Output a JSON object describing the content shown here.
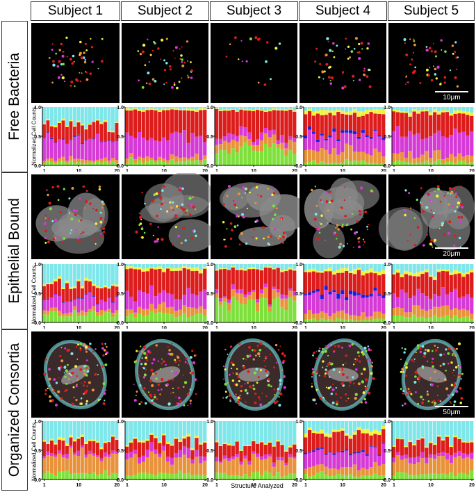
{
  "figure": {
    "subjects": [
      "Subject 1",
      "Subject 2",
      "Subject 3",
      "Subject 4",
      "Subject 5"
    ],
    "rows": [
      {
        "label": "Free Bacteria",
        "scale_bar": "10μm"
      },
      {
        "label": "Epithelial Bound",
        "scale_bar": "20μm"
      },
      {
        "label": "Organized Consortia",
        "scale_bar": "50μm"
      }
    ],
    "y_axis_label": "Normalized Cell Counts",
    "x_axis_label": "Structure Analyzed",
    "y_ticks": [
      "0.0",
      "0.5",
      "1.0"
    ],
    "x_ticks": [
      "1",
      "10",
      "20"
    ]
  },
  "colors": {
    "green": "#7ee03a",
    "orange": "#e8923a",
    "magenta": "#d63ad6",
    "blue": "#1e1ed8",
    "red": "#dd1c1c",
    "yellow": "#f2f23a",
    "cyan": "#7fe6ea"
  },
  "chart_data": [
    {
      "type": "bar",
      "row": "Free Bacteria",
      "subject": "Subject 1",
      "stacked": true,
      "x": [
        1,
        2,
        3,
        4,
        5,
        6,
        7,
        8,
        9,
        10,
        11,
        12,
        13,
        14,
        15,
        16,
        17,
        18,
        19,
        20
      ],
      "ylim": [
        0,
        1
      ],
      "series_order": [
        "green",
        "orange",
        "magenta",
        "blue",
        "red",
        "yellow",
        "cyan"
      ],
      "profile": {
        "green": 0.05,
        "orange": 0.05,
        "magenta": 0.35,
        "blue": 0.01,
        "red": 0.25,
        "yellow": 0.02,
        "cyan": 0.27
      }
    },
    {
      "type": "bar",
      "row": "Free Bacteria",
      "subject": "Subject 2",
      "stacked": true,
      "x": [
        1,
        2,
        3,
        4,
        5,
        6,
        7,
        8,
        9,
        10,
        11,
        12,
        13,
        14,
        15,
        16,
        17,
        18,
        19,
        20
      ],
      "ylim": [
        0,
        1
      ],
      "series_order": [
        "green",
        "orange",
        "magenta",
        "blue",
        "red",
        "yellow",
        "cyan"
      ],
      "profile": {
        "green": 0.07,
        "orange": 0.06,
        "magenta": 0.35,
        "blue": 0.0,
        "red": 0.46,
        "yellow": 0.03,
        "cyan": 0.03
      }
    },
    {
      "type": "bar",
      "row": "Free Bacteria",
      "subject": "Subject 3",
      "stacked": true,
      "x": [
        1,
        2,
        3,
        4,
        5,
        6,
        7,
        8,
        9,
        10,
        11,
        12,
        13,
        14,
        15,
        16,
        17,
        18,
        19,
        20
      ],
      "ylim": [
        0,
        1
      ],
      "series_order": [
        "green",
        "orange",
        "magenta",
        "blue",
        "red",
        "yellow",
        "cyan"
      ],
      "profile": {
        "green": 0.26,
        "orange": 0.13,
        "magenta": 0.1,
        "blue": 0.0,
        "red": 0.45,
        "yellow": 0.02,
        "cyan": 0.04
      }
    },
    {
      "type": "bar",
      "row": "Free Bacteria",
      "subject": "Subject 4",
      "stacked": true,
      "x": [
        1,
        2,
        3,
        4,
        5,
        6,
        7,
        8,
        9,
        10,
        11,
        12,
        13,
        14,
        15,
        16,
        17,
        18,
        19,
        20
      ],
      "ylim": [
        0,
        1
      ],
      "series_order": [
        "green",
        "orange",
        "magenta",
        "blue",
        "red",
        "yellow",
        "cyan"
      ],
      "profile": {
        "green": 0.06,
        "orange": 0.18,
        "magenta": 0.24,
        "blue": 0.04,
        "red": 0.36,
        "yellow": 0.07,
        "cyan": 0.05
      }
    },
    {
      "type": "bar",
      "row": "Free Bacteria",
      "subject": "Subject 5",
      "stacked": true,
      "x": [
        1,
        2,
        3,
        4,
        5,
        6,
        7,
        8,
        9,
        10,
        11,
        12,
        13,
        14,
        15,
        16,
        17,
        18,
        19,
        20
      ],
      "ylim": [
        0,
        1
      ],
      "series_order": [
        "green",
        "orange",
        "magenta",
        "blue",
        "red",
        "yellow",
        "cyan"
      ],
      "profile": {
        "green": 0.06,
        "orange": 0.12,
        "magenta": 0.35,
        "blue": 0.0,
        "red": 0.37,
        "yellow": 0.04,
        "cyan": 0.06
      }
    },
    {
      "type": "bar",
      "row": "Epithelial Bound",
      "subject": "Subject 1",
      "stacked": true,
      "x": [
        1,
        2,
        3,
        4,
        5,
        6,
        7,
        8,
        9,
        10,
        11,
        12,
        13,
        14,
        15,
        16,
        17,
        18,
        19,
        20
      ],
      "ylim": [
        0,
        1
      ],
      "series_order": [
        "green",
        "orange",
        "magenta",
        "blue",
        "red",
        "yellow",
        "cyan"
      ],
      "profile": {
        "green": 0.15,
        "orange": 0.07,
        "magenta": 0.2,
        "blue": 0.01,
        "red": 0.22,
        "yellow": 0.03,
        "cyan": 0.32
      }
    },
    {
      "type": "bar",
      "row": "Epithelial Bound",
      "subject": "Subject 2",
      "stacked": true,
      "x": [
        1,
        2,
        3,
        4,
        5,
        6,
        7,
        8,
        9,
        10,
        11,
        12,
        13,
        14,
        15,
        16,
        17,
        18,
        19,
        20
      ],
      "ylim": [
        0,
        1
      ],
      "series_order": [
        "green",
        "orange",
        "magenta",
        "blue",
        "red",
        "yellow",
        "cyan"
      ],
      "profile": {
        "green": 0.13,
        "orange": 0.12,
        "magenta": 0.25,
        "blue": 0.0,
        "red": 0.4,
        "yellow": 0.04,
        "cyan": 0.06
      }
    },
    {
      "type": "bar",
      "row": "Epithelial Bound",
      "subject": "Subject 3",
      "stacked": true,
      "x": [
        1,
        2,
        3,
        4,
        5,
        6,
        7,
        8,
        9,
        10,
        11,
        12,
        13,
        14,
        15,
        16,
        17,
        18,
        19,
        20
      ],
      "ylim": [
        0,
        1
      ],
      "series_order": [
        "green",
        "orange",
        "magenta",
        "blue",
        "red",
        "yellow",
        "cyan"
      ],
      "profile": {
        "green": 0.3,
        "orange": 0.12,
        "magenta": 0.05,
        "blue": 0.0,
        "red": 0.45,
        "yellow": 0.02,
        "cyan": 0.06
      }
    },
    {
      "type": "bar",
      "row": "Epithelial Bound",
      "subject": "Subject 4",
      "stacked": true,
      "x": [
        1,
        2,
        3,
        4,
        5,
        6,
        7,
        8,
        9,
        10,
        11,
        12,
        13,
        14,
        15,
        16,
        17,
        18,
        19,
        20
      ],
      "ylim": [
        0,
        1
      ],
      "series_order": [
        "green",
        "orange",
        "magenta",
        "blue",
        "red",
        "yellow",
        "cyan"
      ],
      "profile": {
        "green": 0.05,
        "orange": 0.1,
        "magenta": 0.3,
        "blue": 0.05,
        "red": 0.35,
        "yellow": 0.05,
        "cyan": 0.1
      }
    },
    {
      "type": "bar",
      "row": "Epithelial Bound",
      "subject": "Subject 5",
      "stacked": true,
      "x": [
        1,
        2,
        3,
        4,
        5,
        6,
        7,
        8,
        9,
        10,
        11,
        12,
        13,
        14,
        15,
        16,
        17,
        18,
        19,
        20
      ],
      "ylim": [
        0,
        1
      ],
      "series_order": [
        "green",
        "orange",
        "magenta",
        "blue",
        "red",
        "yellow",
        "cyan"
      ],
      "profile": {
        "green": 0.1,
        "orange": 0.15,
        "magenta": 0.25,
        "blue": 0.0,
        "red": 0.3,
        "yellow": 0.05,
        "cyan": 0.15
      }
    },
    {
      "type": "bar",
      "row": "Organized Consortia",
      "subject": "Subject 1",
      "stacked": true,
      "x": [
        1,
        2,
        3,
        4,
        5,
        6,
        7,
        8,
        9,
        10,
        11,
        12,
        13,
        14,
        15,
        16,
        17,
        18,
        19,
        20
      ],
      "ylim": [
        0,
        1
      ],
      "series_order": [
        "green",
        "orange",
        "magenta",
        "blue",
        "red",
        "yellow",
        "cyan"
      ],
      "profile": {
        "green": 0.1,
        "orange": 0.3,
        "magenta": 0.05,
        "blue": 0.0,
        "red": 0.2,
        "yellow": 0.03,
        "cyan": 0.32
      }
    },
    {
      "type": "bar",
      "row": "Organized Consortia",
      "subject": "Subject 2",
      "stacked": true,
      "x": [
        1,
        2,
        3,
        4,
        5,
        6,
        7,
        8,
        9,
        10,
        11,
        12,
        13,
        14,
        15,
        16,
        17,
        18,
        19,
        20
      ],
      "ylim": [
        0,
        1
      ],
      "series_order": [
        "green",
        "orange",
        "magenta",
        "blue",
        "red",
        "yellow",
        "cyan"
      ],
      "profile": {
        "green": 0.1,
        "orange": 0.25,
        "magenta": 0.1,
        "blue": 0.0,
        "red": 0.2,
        "yellow": 0.03,
        "cyan": 0.32
      }
    },
    {
      "type": "bar",
      "row": "Organized Consortia",
      "subject": "Subject 3",
      "stacked": true,
      "x": [
        1,
        2,
        3,
        4,
        5,
        6,
        7,
        8,
        9,
        10,
        11,
        12,
        13,
        14,
        15,
        16,
        17,
        18,
        19,
        20
      ],
      "ylim": [
        0,
        1
      ],
      "series_order": [
        "green",
        "orange",
        "magenta",
        "blue",
        "red",
        "yellow",
        "cyan"
      ],
      "profile": {
        "green": 0.1,
        "orange": 0.25,
        "magenta": 0.05,
        "blue": 0.0,
        "red": 0.2,
        "yellow": 0.02,
        "cyan": 0.38
      }
    },
    {
      "type": "bar",
      "row": "Organized Consortia",
      "subject": "Subject 4",
      "stacked": true,
      "x": [
        1,
        2,
        3,
        4,
        5,
        6,
        7,
        8,
        9,
        10,
        11,
        12,
        13,
        14,
        15,
        16,
        17,
        18,
        19,
        20
      ],
      "ylim": [
        0,
        1
      ],
      "series_order": [
        "green",
        "orange",
        "magenta",
        "blue",
        "red",
        "yellow",
        "cyan"
      ],
      "profile": {
        "green": 0.08,
        "orange": 0.15,
        "magenta": 0.25,
        "blue": 0.02,
        "red": 0.3,
        "yellow": 0.05,
        "cyan": 0.15
      }
    },
    {
      "type": "bar",
      "row": "Organized Consortia",
      "subject": "Subject 5",
      "stacked": true,
      "x": [
        1,
        2,
        3,
        4,
        5,
        6,
        7,
        8,
        9,
        10,
        11,
        12,
        13,
        14,
        15,
        16,
        17,
        18,
        19,
        20
      ],
      "ylim": [
        0,
        1
      ],
      "series_order": [
        "green",
        "orange",
        "magenta",
        "blue",
        "red",
        "yellow",
        "cyan"
      ],
      "profile": {
        "green": 0.1,
        "orange": 0.25,
        "magenta": 0.08,
        "blue": 0.0,
        "red": 0.2,
        "yellow": 0.02,
        "cyan": 0.35
      }
    }
  ]
}
